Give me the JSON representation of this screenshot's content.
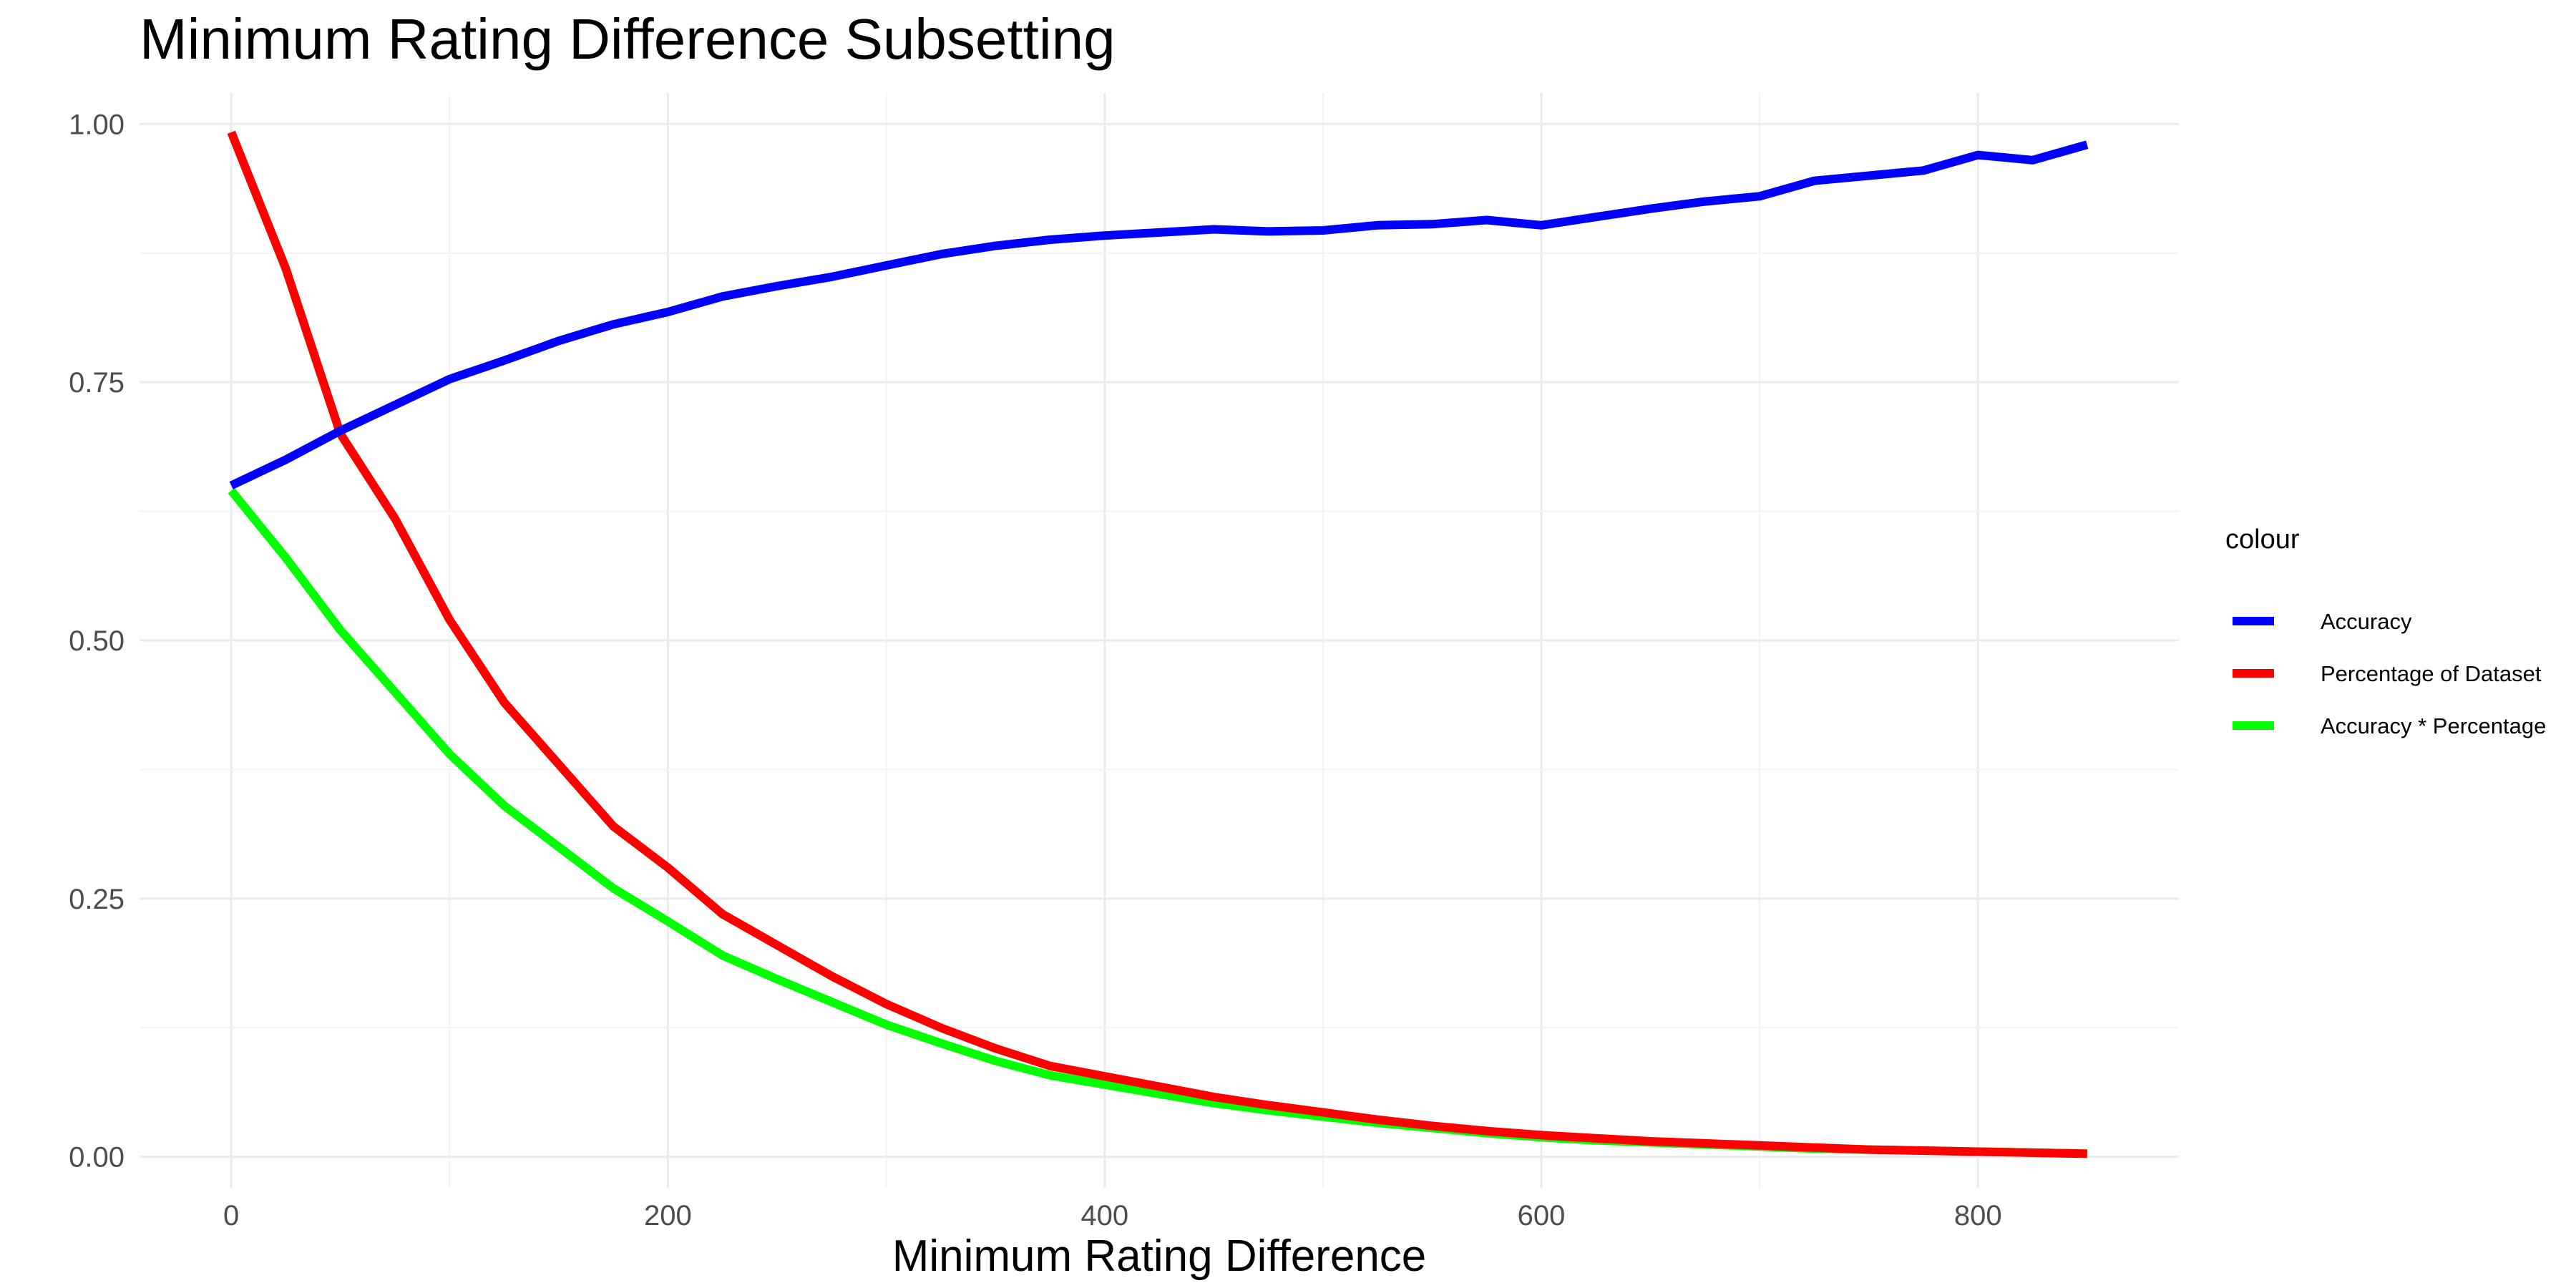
{
  "chart_data": {
    "type": "line",
    "title": "Minimum Rating Difference Subsetting",
    "xlabel": "Minimum Rating Difference",
    "ylabel": "",
    "xlim": [
      -42,
      892
    ],
    "ylim": [
      -0.03,
      1.03
    ],
    "x_ticks": [
      "0",
      "200",
      "400",
      "600",
      "800"
    ],
    "x_tick_values": [
      0,
      200,
      400,
      600,
      800
    ],
    "y_ticks": [
      "0.00",
      "0.25",
      "0.50",
      "0.75",
      "1.00"
    ],
    "y_tick_values": [
      0,
      0.25,
      0.5,
      0.75,
      1.0
    ],
    "grid": true,
    "legend": {
      "title": "colour",
      "position": "right"
    },
    "x": [
      0,
      25,
      50,
      75,
      100,
      125,
      150,
      175,
      200,
      225,
      250,
      275,
      300,
      325,
      350,
      375,
      400,
      425,
      450,
      475,
      500,
      525,
      550,
      575,
      600,
      625,
      650,
      675,
      700,
      725,
      750,
      775,
      800,
      825,
      850
    ],
    "series": [
      {
        "name": "Accuracy",
        "color": "#0000ff",
        "values": [
          0.65,
          0.675,
          0.703,
          0.728,
          0.753,
          0.771,
          0.79,
          0.806,
          0.818,
          0.833,
          0.843,
          0.852,
          0.863,
          0.874,
          0.882,
          0.888,
          0.892,
          0.895,
          0.898,
          0.896,
          0.897,
          0.902,
          0.903,
          0.907,
          0.902,
          0.91,
          0.918,
          0.925,
          0.93,
          0.945,
          0.95,
          0.955,
          0.97,
          0.965,
          0.98
        ]
      },
      {
        "name": "Percentage of Dataset",
        "color": "#ff0000",
        "values": [
          0.992,
          0.86,
          0.7,
          0.618,
          0.52,
          0.44,
          0.38,
          0.32,
          0.28,
          0.235,
          0.205,
          0.175,
          0.148,
          0.125,
          0.105,
          0.088,
          0.078,
          0.068,
          0.058,
          0.05,
          0.043,
          0.036,
          0.03,
          0.025,
          0.021,
          0.018,
          0.015,
          0.013,
          0.011,
          0.009,
          0.007,
          0.006,
          0.005,
          0.004,
          0.003
        ]
      },
      {
        "name": "Accuracy * Percentage",
        "color": "#00ff00",
        "values": [
          0.645,
          0.58,
          0.51,
          0.45,
          0.39,
          0.34,
          0.3,
          0.26,
          0.228,
          0.195,
          0.172,
          0.15,
          0.128,
          0.11,
          0.093,
          0.079,
          0.07,
          0.061,
          0.052,
          0.045,
          0.039,
          0.033,
          0.028,
          0.023,
          0.019,
          0.016,
          0.014,
          0.012,
          0.01,
          0.008,
          0.007,
          0.006,
          0.005,
          0.004,
          0.003
        ]
      }
    ]
  }
}
